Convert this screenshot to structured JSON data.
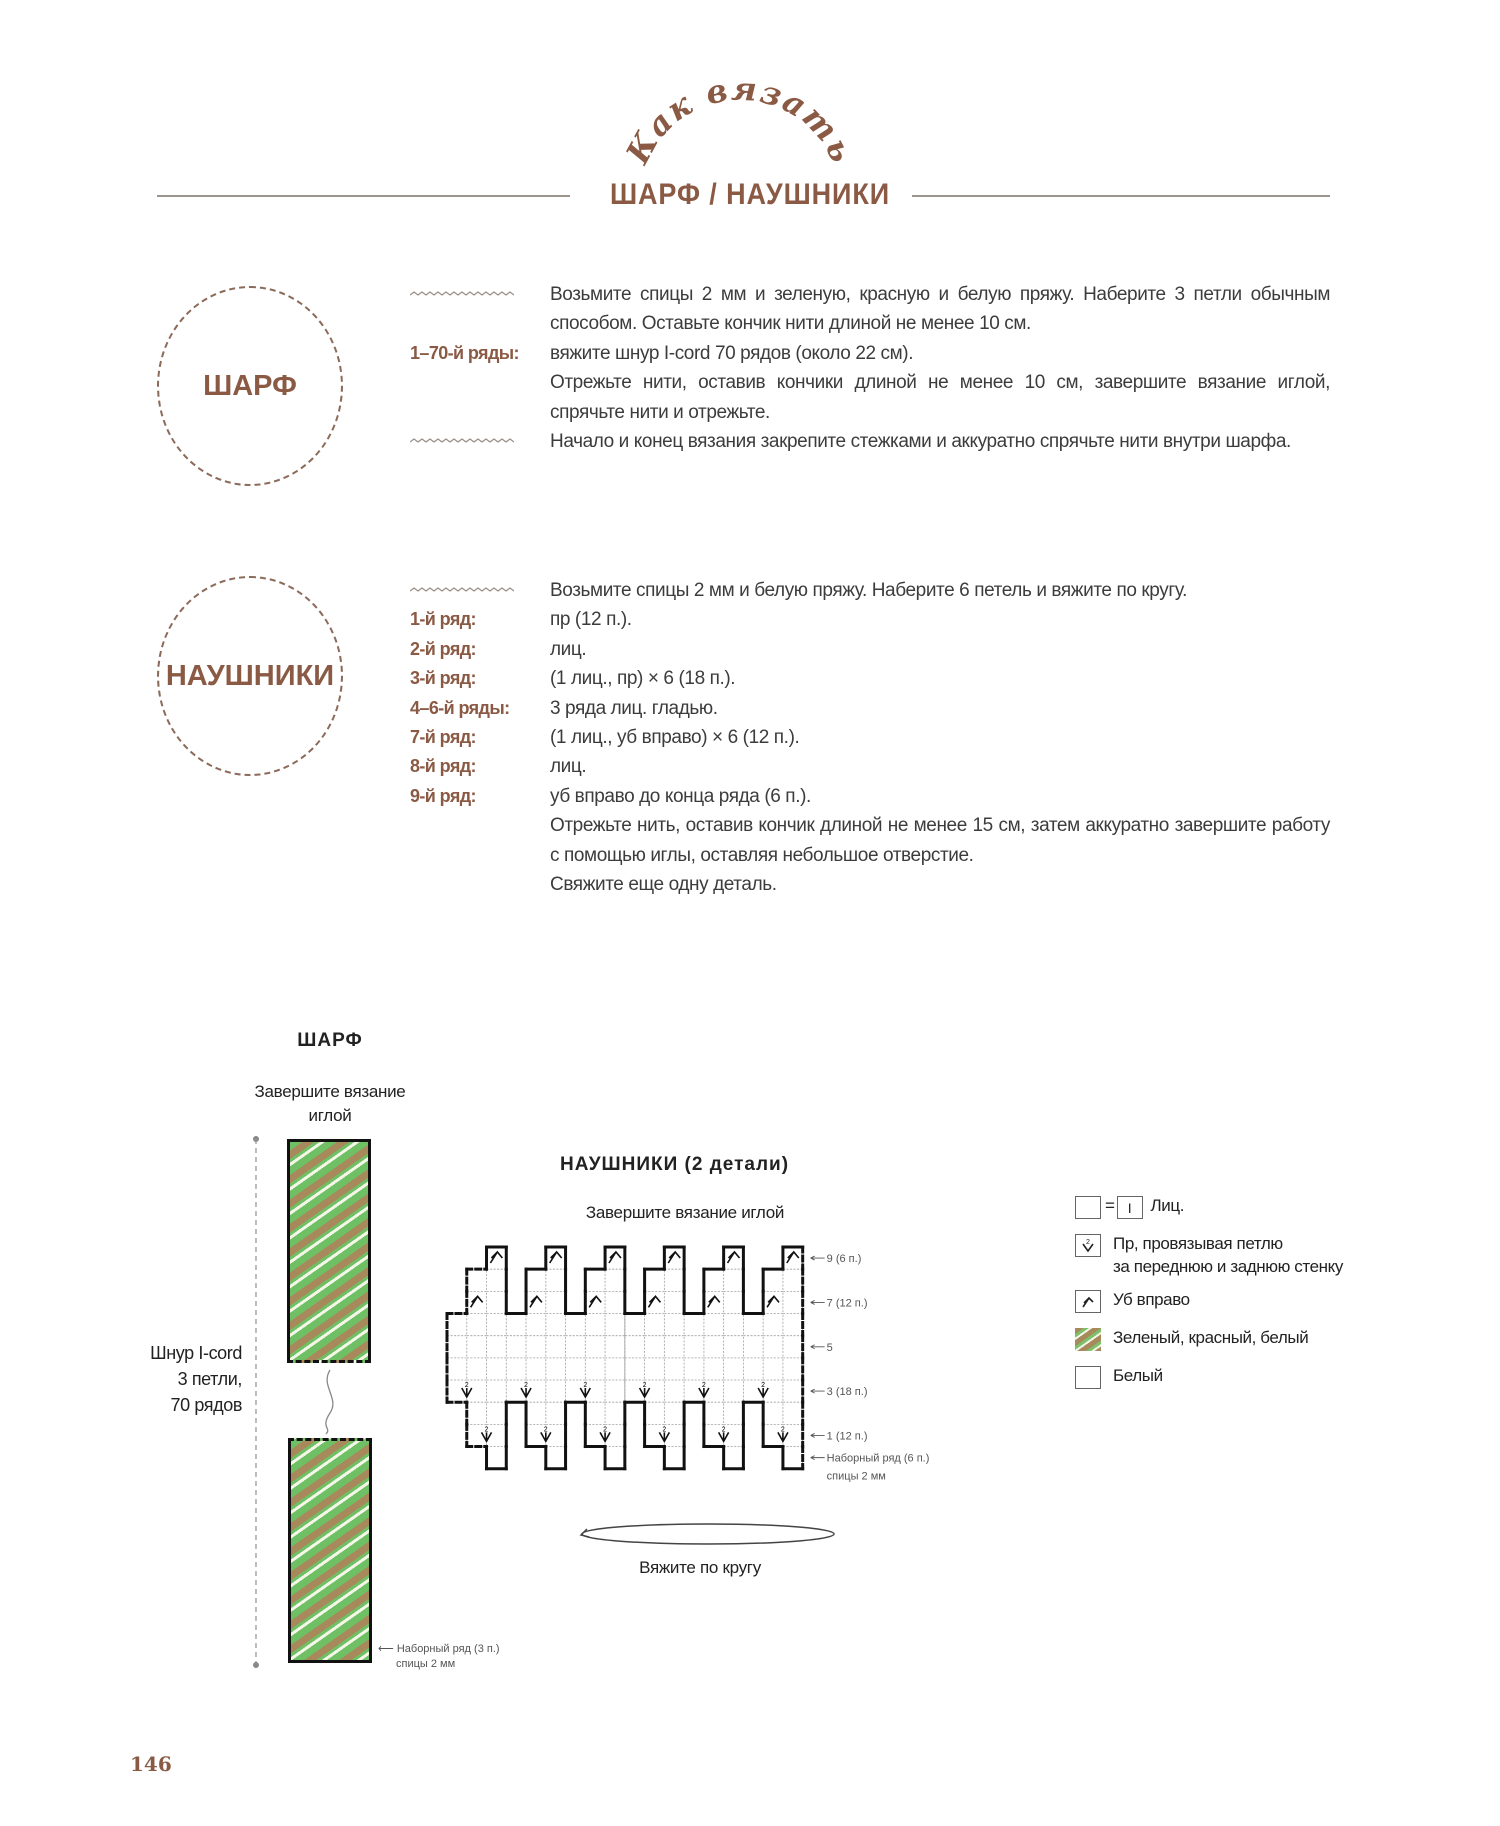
{
  "header": {
    "arc_title": "Как вязать",
    "title": "ШАРФ / НАУШНИКИ"
  },
  "scarf": {
    "badge": "ШАРФ",
    "rows": [
      {
        "label": "",
        "icon": "wave-icon",
        "text": "Возьмите спицы 2 мм и зеленую, красную и белую пряжу. Наберите 3 петли обычным способом. Оставьте кончик нити длиной не менее 10 см."
      },
      {
        "label": "1–70-й ряды:",
        "text": "вяжите шнур I-cord 70 рядов (около 22 см)."
      },
      {
        "label": "",
        "text": "Отрежьте нити, оставив кончики длиной не менее 10 см, завершите вязание иглой, спрячьте нити и отрежьте."
      },
      {
        "label": "",
        "icon": "wave-icon",
        "text": "Начало и конец вязания закрепите стежками и аккуратно спрячьте нити внутри шарфа."
      }
    ]
  },
  "earwarmers": {
    "badge": "НАУШНИКИ",
    "rows": [
      {
        "label": "",
        "icon": "wave-icon",
        "text": "Возьмите спицы 2 мм и белую пряжу. Наберите 6 петель и вяжите по кругу."
      },
      {
        "label": "1-й ряд:",
        "text": "пр (12 п.)."
      },
      {
        "label": "2-й ряд:",
        "text": "лиц."
      },
      {
        "label": "3-й ряд:",
        "text": "(1 лиц., пр) × 6 (18 п.)."
      },
      {
        "label": "4–6-й ряды:",
        "text": "3 ряда лиц. гладью."
      },
      {
        "label": "7-й ряд:",
        "text": "(1 лиц., уб вправо) × 6 (12 п.)."
      },
      {
        "label": "8-й ряд:",
        "text": "лиц."
      },
      {
        "label": "9-й ряд:",
        "text": "уб вправо до конца ряда (6 п.)."
      },
      {
        "label": "",
        "text": "Отрежьте нить, оставив кончик длиной не менее 15 см, затем аккуратно завершите работу с помощью иглы, оставляя небольшое отверстие."
      },
      {
        "label": "",
        "text": "Свяжите еще одну деталь."
      }
    ]
  },
  "scarf_diagram": {
    "title": "ШАРФ",
    "finish_line1": "Завершите вязание",
    "finish_line2": "иглой",
    "cord_line1": "Шнур I-cord",
    "cord_line2": "3 петли,",
    "cord_line3": "70 рядов",
    "caston_line1": "Наборный ряд (3 п.)",
    "caston_line2": "спицы 2 мм",
    "colors": {
      "green": "#6fc065",
      "red": "#a8895c",
      "white": "#f4f6e8"
    }
  },
  "ear_diagram": {
    "title": "НАУШНИКИ (2 детали)",
    "finish": "Завершите вязание иглой",
    "round": "Вяжите по кругу",
    "columns": 18,
    "repeat": 3,
    "rows": [
      {
        "row": 0,
        "stitches": 6
      },
      {
        "row": 1,
        "stitches": 12,
        "symbol": "increase"
      },
      {
        "row": 2,
        "stitches": 12
      },
      {
        "row": 3,
        "stitches": 18,
        "symbol": "increase"
      },
      {
        "row": 4,
        "stitches": 18
      },
      {
        "row": 5,
        "stitches": 18
      },
      {
        "row": 6,
        "stitches": 18
      },
      {
        "row": 7,
        "stitches": 12,
        "symbol": "decrease"
      },
      {
        "row": 8,
        "stitches": 12
      },
      {
        "row": 9,
        "stitches": 6,
        "symbol": "decrease"
      }
    ],
    "row_labels": {
      "r9": "9 (6 п.)",
      "r7": "7 (12 п.)",
      "r5": "5",
      "r3": "3 (18 п.)",
      "r1": "1 (12 п.)",
      "caston1": "Наборный ряд (6 п.)",
      "caston2": "спицы 2 мм"
    }
  },
  "legend": {
    "knit": "Лиц.",
    "knit_symbol": "I",
    "equals": "=",
    "increase_line1": "Пр, провязывая петлю",
    "increase_line2": "за  переднюю и заднюю стенку",
    "decrease": "Уб вправо",
    "striped": "Зеленый, красный, белый",
    "white": "Белый"
  },
  "page_number": "146",
  "accent_color": "#8b5a45"
}
